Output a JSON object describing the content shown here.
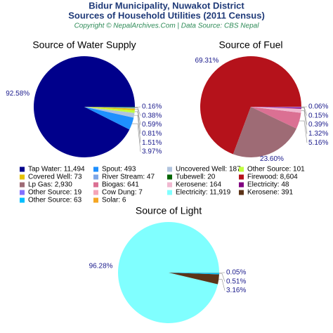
{
  "header": {
    "title_lines": [
      "Bidur Municipality, Nuwakot District",
      "Sources of Household Utilities (2011 Census)"
    ],
    "subtitle": "Copyright © NepalArchives.Com | Data Source: CBS Nepal"
  },
  "chart_data": [
    {
      "type": "pie",
      "title": "Source of Water Supply",
      "labels": [
        "Tap Water: 11,494",
        "Spout: 493",
        "Uncovered Well: 187",
        "Other Source: 101",
        "Covered Well: 73",
        "River Stream: 47",
        "Tubewell: 20"
      ],
      "values": [
        92.58,
        3.97,
        1.51,
        0.81,
        0.59,
        0.38,
        0.16
      ],
      "value_labels": [
        "92.58%",
        "3.97%",
        "1.51%",
        "0.81%",
        "0.59%",
        "0.38%",
        "0.16%"
      ],
      "colors": [
        "#00008b",
        "#1e90ff",
        "#b0c4de",
        "#c0ff3e",
        "#e6c200",
        "#7ea6e6",
        "#006400"
      ]
    },
    {
      "type": "pie",
      "title": "Source of Fuel",
      "labels": [
        "Firewood: 8,604",
        "Lp Gas: 2,930",
        "Biogas: 641",
        "Kerosene: 164",
        "Electricity: 48",
        "Other Source: 19",
        "Cow Dung: 7"
      ],
      "values": [
        69.31,
        23.6,
        5.16,
        1.32,
        0.39,
        0.15,
        0.06
      ],
      "value_labels": [
        "69.31%",
        "23.60%",
        "5.16%",
        "1.32%",
        "0.39%",
        "0.15%",
        "0.06%"
      ],
      "colors": [
        "#b5121b",
        "#9e6b75",
        "#db7093",
        "#f0b8d0",
        "#800080",
        "#8470ff",
        "#f5a5b8"
      ]
    },
    {
      "type": "pie",
      "title": "Source of Light",
      "labels": [
        "Electricity: 11,919",
        "Kerosene: 391",
        "Other Source: 63",
        "Solar: 6"
      ],
      "values": [
        96.28,
        3.16,
        0.51,
        0.05
      ],
      "value_labels": [
        "96.28%",
        "3.16%",
        "0.51%",
        "0.05%"
      ],
      "colors": [
        "#80ffff",
        "#5c3317",
        "#00bfff",
        "#f5a623"
      ]
    }
  ]
}
